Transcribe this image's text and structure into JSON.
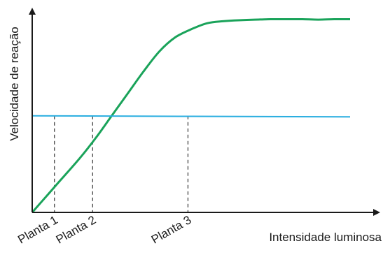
{
  "chart_data": {
    "type": "line",
    "xlabel": "Intensidade luminosa",
    "ylabel": "Velocidade de reação",
    "xlim": [
      0,
      100
    ],
    "ylim": [
      0,
      100
    ],
    "grid": false,
    "series": [
      {
        "name": "",
        "color": "#1aa35a",
        "x": [
          0,
          5,
          10,
          15,
          20,
          25,
          30,
          35,
          40,
          45,
          50,
          55,
          60,
          65,
          70,
          75,
          80,
          85,
          90,
          95,
          100
        ],
        "y": [
          0,
          9,
          18,
          27,
          37,
          48,
          59,
          70,
          80,
          87,
          91,
          94,
          95,
          95.5,
          95.8,
          96,
          96,
          96,
          95.8,
          96,
          96
        ]
      },
      {
        "name": "",
        "color": "#2aaee0",
        "x": [
          0,
          100
        ],
        "y": [
          48,
          47.5
        ]
      }
    ],
    "markers": [
      {
        "label": "Planta 1",
        "x": 7,
        "y": 48
      },
      {
        "label": "Planta 2",
        "x": 19,
        "y": 48
      },
      {
        "label": "Planta 3",
        "x": 49,
        "y": 48
      }
    ]
  }
}
